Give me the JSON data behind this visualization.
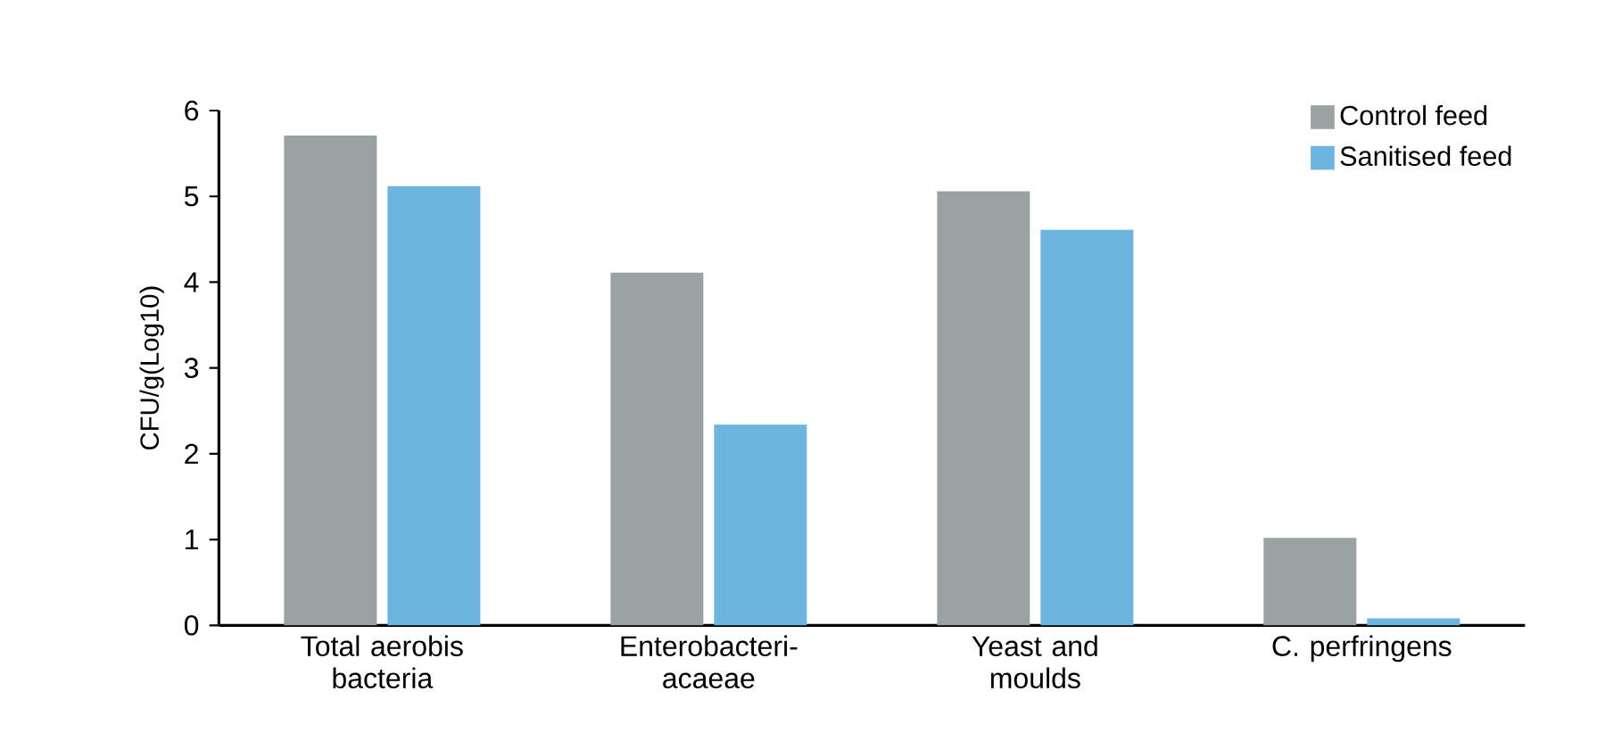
{
  "chart_data": {
    "type": "bar",
    "ylabel": "CFU/g(Log10)",
    "categories": [
      "Total aerobis bacteria",
      "Enterobacteri-acaeae",
      "Yeast and moulds",
      "C. perfringens"
    ],
    "series": [
      {
        "name": "Control feed",
        "color": "#9aa2a3",
        "values": [
          5.71,
          4.11,
          5.06,
          1.02
        ]
      },
      {
        "name": "Sanitised feed",
        "color": "#6bb5de",
        "values": [
          5.12,
          2.34,
          4.61,
          0.08
        ]
      }
    ],
    "ylim": [
      0,
      6
    ],
    "yticks": [
      0,
      1,
      2,
      3,
      4,
      5,
      6
    ],
    "grid": false,
    "legend": "top right"
  }
}
